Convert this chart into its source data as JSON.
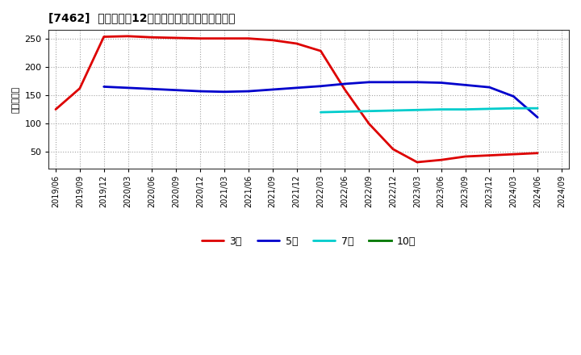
{
  "title": "[7462]  当期純利益12か月移動合計の平均値の推移",
  "ylabel": "（百万円）",
  "background_color": "#ffffff",
  "plot_bg_color": "#ffffff",
  "grid_color": "#999999",
  "ylim": [
    20,
    265
  ],
  "yticks": [
    50,
    100,
    150,
    200,
    250
  ],
  "series_order": [
    "3年",
    "5年",
    "7年",
    "10年"
  ],
  "series": {
    "3年": {
      "color": "#dd0000",
      "linewidth": 2.0,
      "dates": [
        "2019/06",
        "2019/09",
        "2019/12",
        "2020/03",
        "2020/06",
        "2020/09",
        "2020/12",
        "2021/03",
        "2021/06",
        "2021/09",
        "2021/12",
        "2022/03",
        "2022/06",
        "2022/09",
        "2022/12",
        "2023/03",
        "2023/06",
        "2023/09",
        "2023/12",
        "2024/03",
        "2024/06"
      ],
      "values": [
        125,
        162,
        253,
        254,
        252,
        251,
        250,
        250,
        250,
        247,
        241,
        228,
        160,
        100,
        55,
        32,
        36,
        42,
        44,
        46,
        48
      ]
    },
    "5年": {
      "color": "#0000cc",
      "linewidth": 2.0,
      "dates": [
        "2019/12",
        "2020/03",
        "2020/06",
        "2020/09",
        "2020/12",
        "2021/03",
        "2021/06",
        "2021/09",
        "2021/12",
        "2022/03",
        "2022/06",
        "2022/09",
        "2022/12",
        "2023/03",
        "2023/06",
        "2023/09",
        "2023/12",
        "2024/03",
        "2024/06"
      ],
      "values": [
        165,
        163,
        161,
        159,
        157,
        156,
        157,
        160,
        163,
        166,
        170,
        173,
        173,
        173,
        172,
        168,
        164,
        148,
        111
      ]
    },
    "7年": {
      "color": "#00cccc",
      "linewidth": 2.0,
      "dates": [
        "2022/03",
        "2022/06",
        "2022/09",
        "2022/12",
        "2023/03",
        "2023/06",
        "2023/09",
        "2023/12",
        "2024/03",
        "2024/06"
      ],
      "values": [
        120,
        121,
        122,
        123,
        124,
        125,
        125,
        126,
        127,
        127
      ]
    },
    "10年": {
      "color": "#007700",
      "linewidth": 2.0,
      "dates": [],
      "values": []
    }
  },
  "x_tick_labels": [
    "2019/06",
    "2019/09",
    "2019/12",
    "2020/03",
    "2020/06",
    "2020/09",
    "2020/12",
    "2021/03",
    "2021/06",
    "2021/09",
    "2021/12",
    "2022/03",
    "2022/06",
    "2022/09",
    "2022/12",
    "2023/03",
    "2023/06",
    "2023/09",
    "2023/12",
    "2024/03",
    "2024/06",
    "2024/09"
  ],
  "legend_labels": [
    "3年",
    "5年",
    "7年",
    "10年"
  ],
  "legend_colors": [
    "#dd0000",
    "#0000cc",
    "#00cccc",
    "#007700"
  ]
}
